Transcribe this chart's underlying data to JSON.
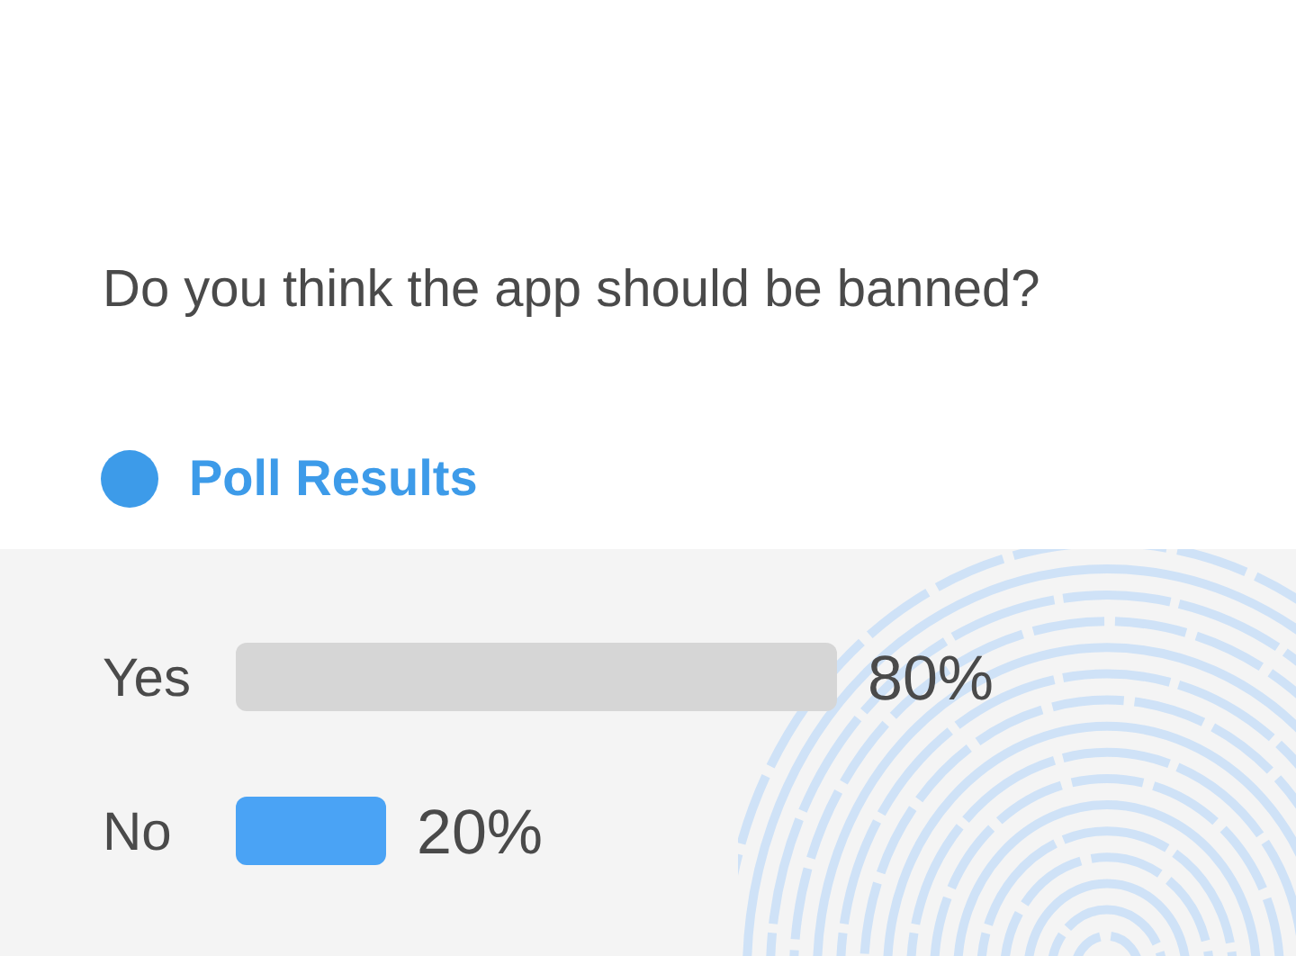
{
  "chart_data": {
    "type": "bar",
    "orientation": "horizontal",
    "title": "Do you think the app should be banned?",
    "subtitle": "Poll Results",
    "categories": [
      "Yes",
      "No"
    ],
    "values": [
      80,
      20
    ],
    "colors": [
      "#d6d6d6",
      "#4aa3f5"
    ],
    "value_labels": [
      "80%",
      "20%"
    ],
    "tick_labels": "y"
  }
}
